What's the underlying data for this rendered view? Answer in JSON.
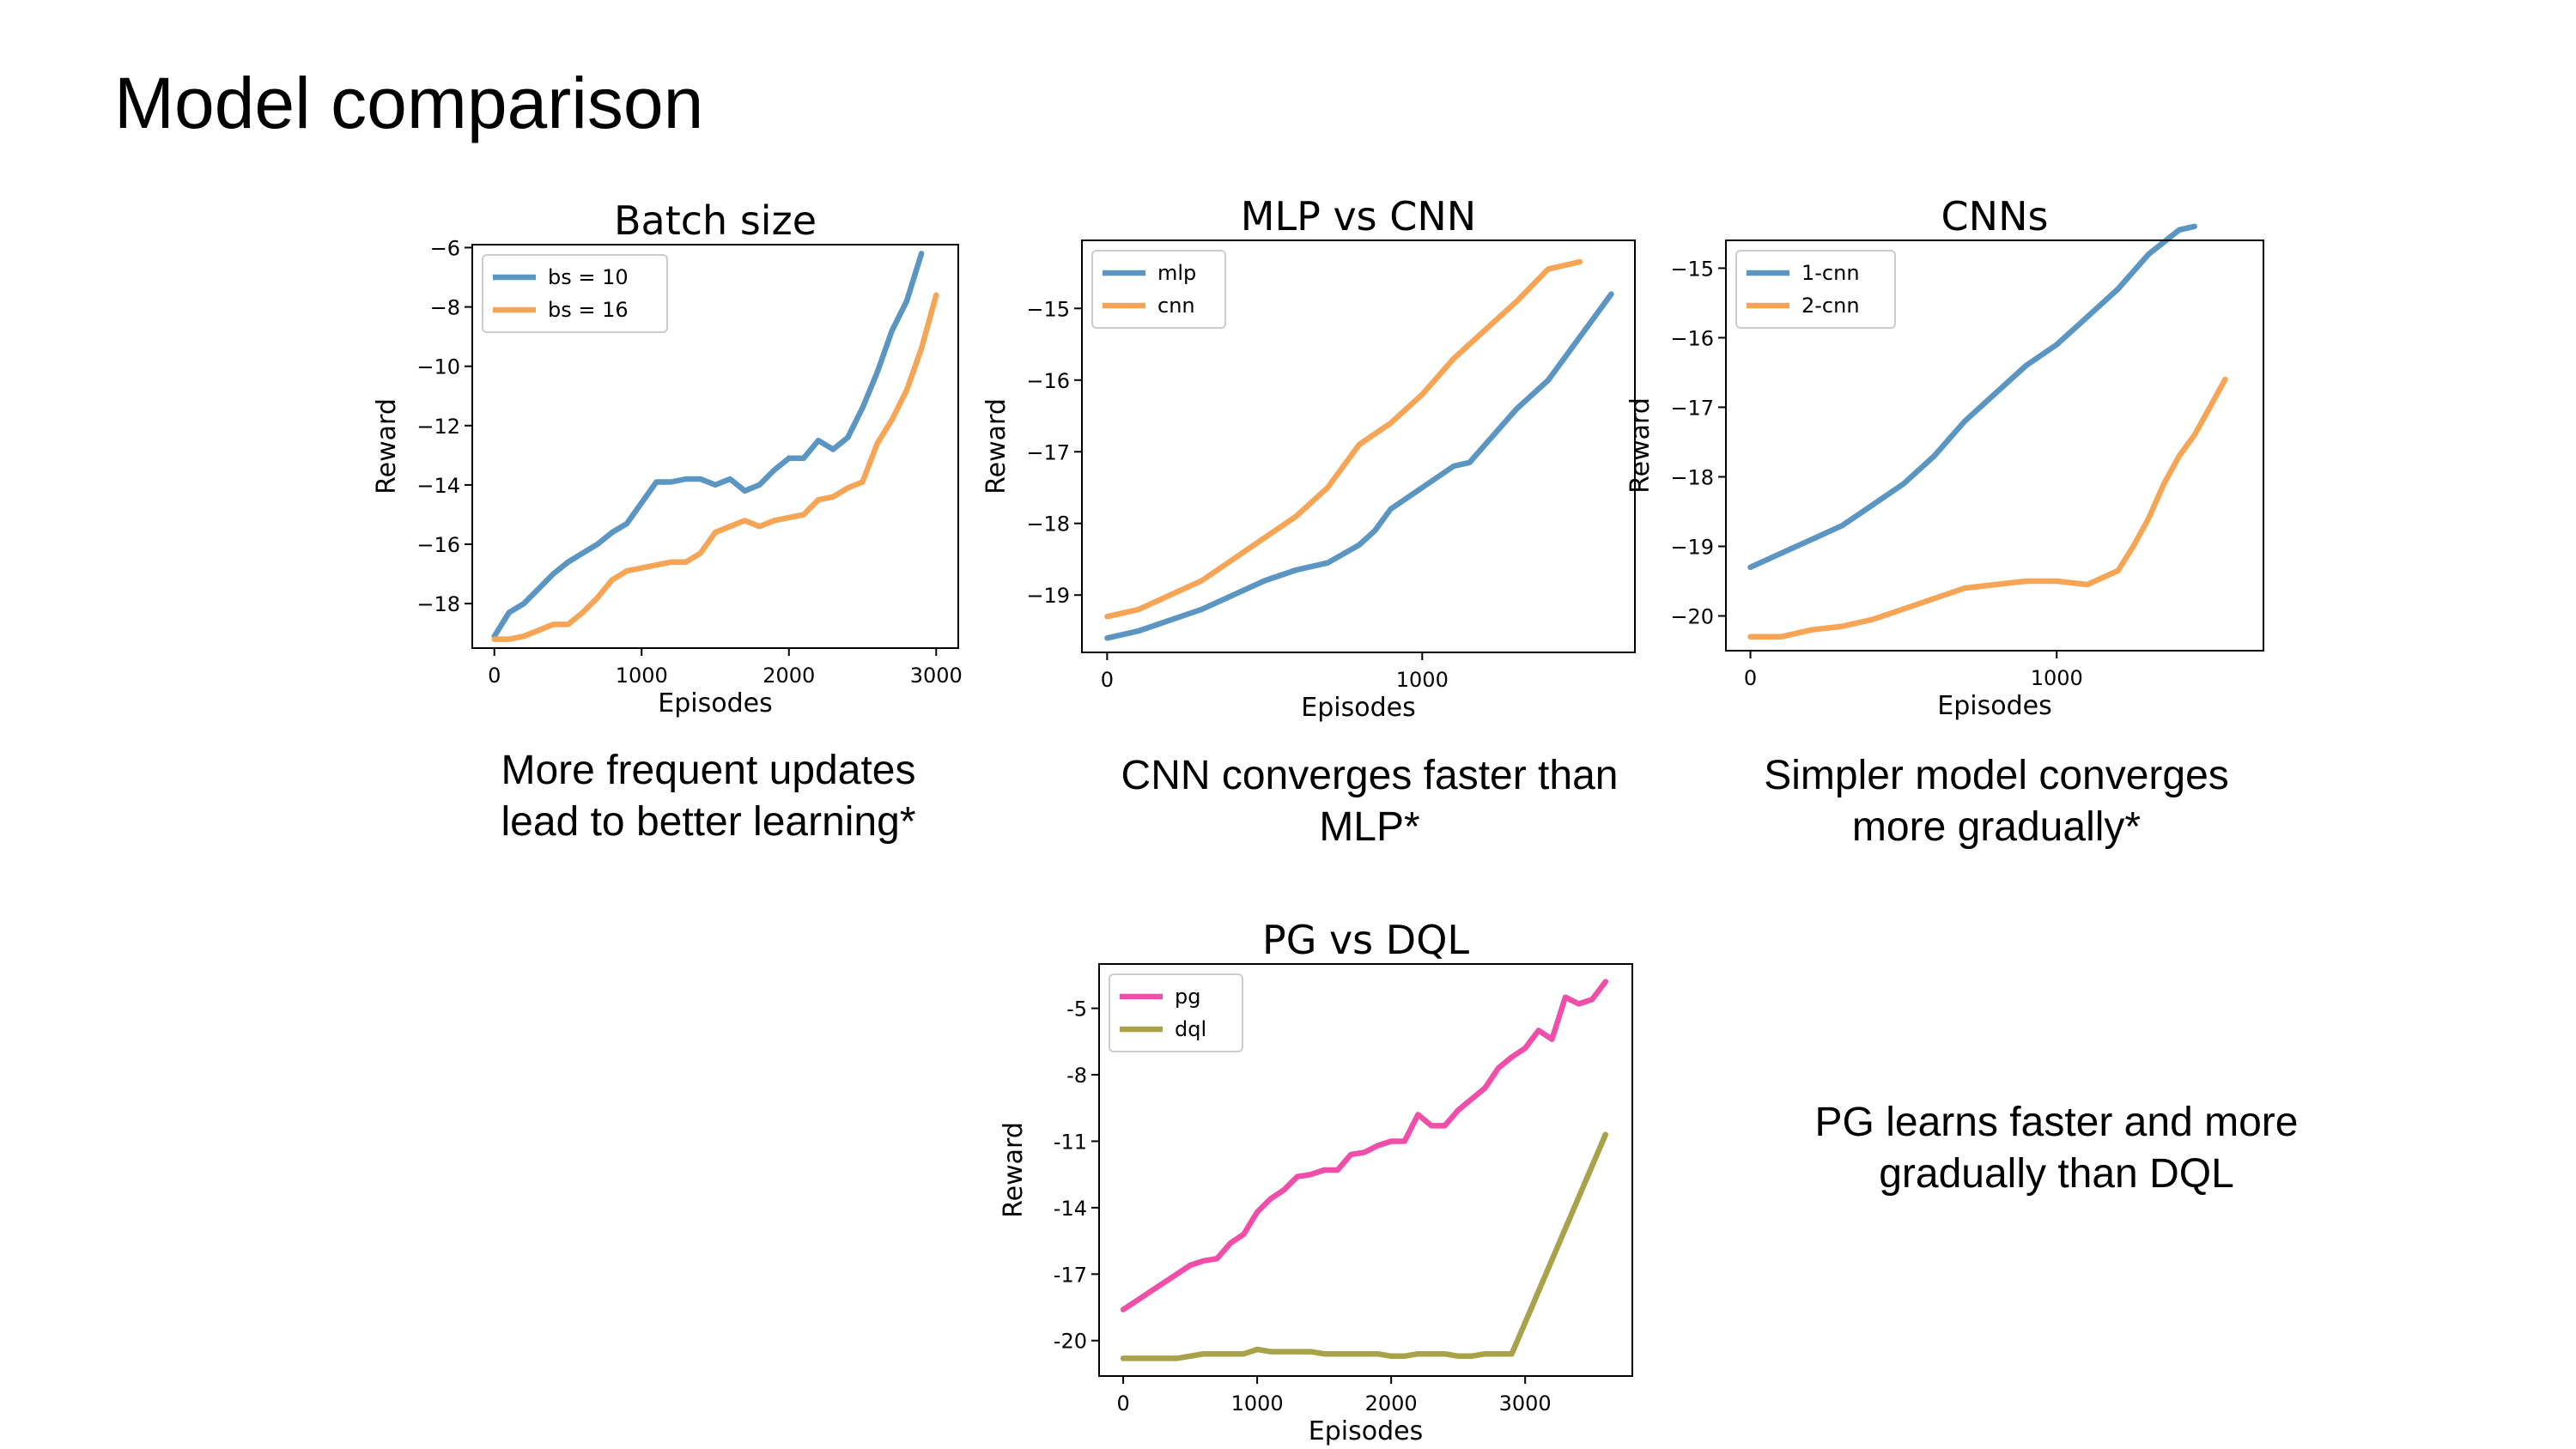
{
  "slide": {
    "title": "Model comparison",
    "captions": [
      "More frequent updates lead to better learning*",
      "CNN converges faster than MLP*",
      "Simpler model converges more gradually*",
      "PG learns faster and more gradually than DQL"
    ]
  },
  "chart_data": [
    {
      "type": "line",
      "title": "Batch size",
      "xlabel": "Episodes",
      "ylabel": "Reward",
      "xlim": [
        -150,
        3150
      ],
      "ylim": [
        -19.5,
        -5.9
      ],
      "xticks": [
        0,
        1000,
        2000,
        3000
      ],
      "xtick_labels": [
        "0",
        "1000",
        "2000",
        "3000"
      ],
      "yticks": [
        -18,
        -16,
        -14,
        -12,
        -10,
        -8,
        -6
      ],
      "ytick_labels": [
        "−18",
        "−16",
        "−14",
        "−12",
        "−10",
        "−8",
        "−6"
      ],
      "legend": "top-left",
      "grid": false,
      "series": [
        {
          "name": "bs = 10",
          "color": "#5b95c2",
          "x": [
            0,
            100,
            200,
            300,
            400,
            500,
            600,
            700,
            800,
            900,
            1000,
            1100,
            1200,
            1300,
            1400,
            1500,
            1600,
            1700,
            1800,
            1900,
            2000,
            2100,
            2200,
            2300,
            2400,
            2500,
            2600,
            2700,
            2800,
            2900
          ],
          "y": [
            -19.1,
            -18.3,
            -18.0,
            -17.5,
            -17.0,
            -16.6,
            -16.3,
            -16.0,
            -15.6,
            -15.3,
            -14.6,
            -13.9,
            -13.9,
            -13.8,
            -13.8,
            -14.0,
            -13.8,
            -14.2,
            -14.0,
            -13.5,
            -13.1,
            -13.1,
            -12.5,
            -12.8,
            -12.4,
            -11.4,
            -10.2,
            -8.8,
            -7.8,
            -6.2
          ]
        },
        {
          "name": "bs = 16",
          "color": "#f5a555",
          "x": [
            0,
            100,
            200,
            300,
            400,
            500,
            600,
            700,
            800,
            900,
            1000,
            1100,
            1200,
            1300,
            1400,
            1500,
            1600,
            1700,
            1800,
            1900,
            2000,
            2100,
            2200,
            2300,
            2400,
            2500,
            2600,
            2700,
            2800,
            2900,
            3000
          ],
          "y": [
            -19.2,
            -19.2,
            -19.1,
            -18.9,
            -18.7,
            -18.7,
            -18.3,
            -17.8,
            -17.2,
            -16.9,
            -16.8,
            -16.7,
            -16.6,
            -16.6,
            -16.3,
            -15.6,
            -15.4,
            -15.2,
            -15.4,
            -15.2,
            -15.1,
            -15.0,
            -14.5,
            -14.4,
            -14.1,
            -13.9,
            -12.6,
            -11.8,
            -10.8,
            -9.4,
            -7.6
          ]
        }
      ]
    },
    {
      "type": "line",
      "title": "MLP vs CNN",
      "xlabel": "Episodes",
      "ylabel": "Reward",
      "xlim": [
        -80,
        1675
      ],
      "ylim": [
        -19.8,
        -14.05
      ],
      "xticks": [
        0,
        1000
      ],
      "xtick_labels": [
        "0",
        "1000"
      ],
      "yticks": [
        -19,
        -18,
        -17,
        -16,
        -15
      ],
      "ytick_labels": [
        "−19",
        "−18",
        "−17",
        "−16",
        "−15"
      ],
      "legend": "top-left",
      "grid": false,
      "series": [
        {
          "name": "mlp",
          "color": "#5b95c2",
          "x": [
            0,
            100,
            200,
            300,
            400,
            500,
            600,
            700,
            800,
            850,
            900,
            1000,
            1100,
            1150,
            1200,
            1300,
            1400,
            1500,
            1600
          ],
          "y": [
            -19.6,
            -19.5,
            -19.35,
            -19.2,
            -19.0,
            -18.8,
            -18.65,
            -18.55,
            -18.3,
            -18.1,
            -17.8,
            -17.5,
            -17.2,
            -17.15,
            -16.9,
            -16.4,
            -16.0,
            -15.4,
            -14.8
          ]
        },
        {
          "name": "cnn",
          "color": "#f5a555",
          "x": [
            0,
            100,
            200,
            300,
            400,
            500,
            600,
            700,
            800,
            900,
            1000,
            1100,
            1200,
            1300,
            1400,
            1500
          ],
          "y": [
            -19.3,
            -19.2,
            -19.0,
            -18.8,
            -18.5,
            -18.2,
            -17.9,
            -17.5,
            -16.9,
            -16.6,
            -16.2,
            -15.7,
            -15.3,
            -14.9,
            -14.45,
            -14.35
          ]
        }
      ]
    },
    {
      "type": "line",
      "title": "CNNs",
      "xlabel": "Episodes",
      "ylabel": "Reward",
      "xlim": [
        -80,
        1675
      ],
      "ylim": [
        -20.5,
        -14.6
      ],
      "xticks": [
        0,
        1000
      ],
      "xtick_labels": [
        "0",
        "1000"
      ],
      "yticks": [
        -20,
        -19,
        -18,
        -17,
        -16,
        -15
      ],
      "ytick_labels": [
        "−20",
        "−19",
        "−18",
        "−17",
        "−16",
        "−15"
      ],
      "legend": "top-left",
      "grid": false,
      "series": [
        {
          "name": "1-cnn",
          "color": "#5b95c2",
          "x": [
            0,
            100,
            200,
            300,
            400,
            500,
            600,
            700,
            800,
            900,
            1000,
            1100,
            1200,
            1300,
            1400,
            1450
          ],
          "y": [
            -19.3,
            -19.1,
            -18.9,
            -18.7,
            -18.4,
            -18.1,
            -17.7,
            -17.2,
            -16.8,
            -16.4,
            -16.1,
            -15.7,
            -15.3,
            -14.8,
            -14.45,
            -14.4
          ]
        },
        {
          "name": "2-cnn",
          "color": "#f5a555",
          "x": [
            0,
            100,
            200,
            300,
            400,
            500,
            600,
            700,
            800,
            900,
            1000,
            1100,
            1200,
            1250,
            1300,
            1350,
            1400,
            1450,
            1500,
            1550
          ],
          "y": [
            -20.3,
            -20.3,
            -20.2,
            -20.15,
            -20.05,
            -19.9,
            -19.75,
            -19.6,
            -19.55,
            -19.5,
            -19.5,
            -19.55,
            -19.35,
            -19.0,
            -18.6,
            -18.1,
            -17.7,
            -17.4,
            -17.0,
            -16.6
          ]
        }
      ]
    },
    {
      "type": "line",
      "title": "PG vs DQL",
      "xlabel": "Episodes",
      "ylabel": "Reward",
      "xlim": [
        -180,
        3800
      ],
      "ylim": [
        -21.6,
        -3.0
      ],
      "xticks": [
        0,
        1000,
        2000,
        3000
      ],
      "xtick_labels": [
        "0",
        "1000",
        "2000",
        "3000"
      ],
      "yticks": [
        -20,
        -17,
        -14,
        -11,
        -8,
        -5
      ],
      "ytick_labels": [
        "-20",
        "-17",
        "-14",
        "-11",
        "-8",
        "-5"
      ],
      "legend": "top-left",
      "grid": false,
      "series": [
        {
          "name": "pg",
          "color": "#ef4fa8",
          "x": [
            0,
            100,
            200,
            300,
            400,
            500,
            600,
            700,
            800,
            900,
            1000,
            1100,
            1200,
            1300,
            1400,
            1500,
            1600,
            1700,
            1800,
            1900,
            2000,
            2100,
            2200,
            2300,
            2400,
            2500,
            2600,
            2700,
            2800,
            2900,
            3000,
            3100,
            3200,
            3300,
            3400,
            3500,
            3600
          ],
          "y": [
            -18.6,
            -18.2,
            -17.8,
            -17.4,
            -17.0,
            -16.6,
            -16.4,
            -16.3,
            -15.6,
            -15.2,
            -14.2,
            -13.6,
            -13.2,
            -12.6,
            -12.5,
            -12.3,
            -12.3,
            -11.6,
            -11.5,
            -11.2,
            -11.0,
            -11.0,
            -9.8,
            -10.3,
            -10.3,
            -9.6,
            -9.1,
            -8.6,
            -7.7,
            -7.2,
            -6.8,
            -6.0,
            -6.4,
            -4.5,
            -4.8,
            -4.6,
            -3.8
          ]
        },
        {
          "name": "dql",
          "color": "#a8a34a",
          "x": [
            0,
            100,
            200,
            300,
            400,
            500,
            600,
            700,
            800,
            900,
            1000,
            1100,
            1200,
            1300,
            1400,
            1500,
            1600,
            1700,
            1800,
            1900,
            2000,
            2100,
            2200,
            2300,
            2400,
            2500,
            2600,
            2700,
            2800,
            2900,
            3600
          ],
          "y": [
            -20.8,
            -20.8,
            -20.8,
            -20.8,
            -20.8,
            -20.7,
            -20.6,
            -20.6,
            -20.6,
            -20.6,
            -20.4,
            -20.5,
            -20.5,
            -20.5,
            -20.5,
            -20.6,
            -20.6,
            -20.6,
            -20.6,
            -20.6,
            -20.7,
            -20.7,
            -20.6,
            -20.6,
            -20.6,
            -20.7,
            -20.7,
            -20.6,
            -20.6,
            -20.6,
            -10.7
          ]
        }
      ]
    }
  ]
}
